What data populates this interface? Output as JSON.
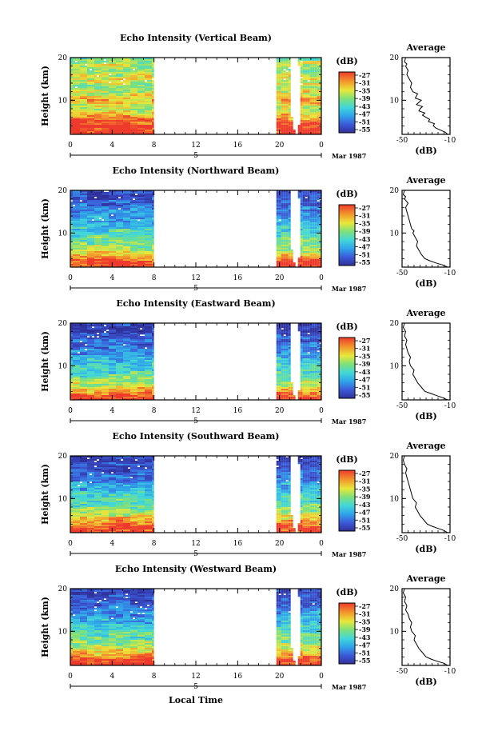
{
  "figure": {
    "month_label": "Mar 1987",
    "date_label": "5",
    "xlabel": "Local Time",
    "ylabel": "Height (km)",
    "cbar_title": "(dB)",
    "cbar_ticks": [
      "-27",
      "-31",
      "-35",
      "-39",
      "-43",
      "-47",
      "-51",
      "-55"
    ],
    "average_title": "Average",
    "average_xlabel": "(dB)"
  },
  "chart_data": [
    {
      "type": "heatmap",
      "title": "Echo Intensity (Vertical Beam)",
      "x_ticks": [
        "0",
        "4",
        "8",
        "12",
        "16",
        "20",
        "0"
      ],
      "y_ticks": [
        "20",
        "10"
      ],
      "xlim": [
        0,
        24
      ],
      "ylim": [
        2,
        20
      ],
      "data_time_ranges": [
        [
          0,
          8
        ],
        [
          19.7,
          24
        ]
      ],
      "gap_hours": [
        8,
        19.7
      ],
      "colorbar": {
        "label": "(dB)",
        "range": [
          -56,
          -25
        ]
      },
      "layers_db": [
        [
          2,
          -26
        ],
        [
          4,
          -27
        ],
        [
          5,
          -28
        ],
        [
          6.5,
          -33
        ],
        [
          8,
          -37
        ],
        [
          10,
          -32
        ],
        [
          11.5,
          -35
        ],
        [
          13,
          -38
        ],
        [
          15,
          -34
        ],
        [
          17,
          -39
        ],
        [
          18.5,
          -36
        ],
        [
          20,
          -40
        ]
      ],
      "average": {
        "x_ticks": [
          "-50",
          "-10"
        ],
        "y_ticks": [
          "20",
          "10"
        ],
        "xlim": [
          -50,
          -10
        ],
        "ylim": [
          2,
          20
        ],
        "x": [
          -12,
          -14,
          -18,
          -22,
          -24,
          -23,
          -28,
          -27,
          -30,
          -33,
          -31,
          -36,
          -35,
          -33,
          -38,
          -36,
          -34,
          -39,
          -38,
          -37,
          -41,
          -43,
          -42,
          -44,
          -46,
          -45,
          -47,
          -46,
          -48,
          -47
        ],
        "y": [
          2,
          2.5,
          3,
          3.5,
          4,
          4.5,
          5,
          5.5,
          6,
          6.5,
          7,
          7.5,
          8,
          8.5,
          9,
          9.5,
          10,
          10.5,
          11,
          11.5,
          12,
          13,
          14,
          15,
          16,
          17,
          18,
          18.5,
          19,
          20
        ]
      }
    },
    {
      "type": "heatmap",
      "title": "Echo Intensity (Northward Beam)",
      "x_ticks": [
        "0",
        "4",
        "8",
        "12",
        "16",
        "20",
        "0"
      ],
      "y_ticks": [
        "20",
        "10"
      ],
      "xlim": [
        0,
        24
      ],
      "ylim": [
        2,
        20
      ],
      "data_time_ranges": [
        [
          0,
          8
        ],
        [
          19.7,
          24
        ]
      ],
      "gap_hours": [
        8,
        19.7
      ],
      "colorbar": {
        "label": "(dB)",
        "range": [
          -56,
          -25
        ]
      },
      "layers_db": [
        [
          2,
          -26
        ],
        [
          3.5,
          -28
        ],
        [
          5,
          -34
        ],
        [
          6.5,
          -38
        ],
        [
          8,
          -40
        ],
        [
          10,
          -42
        ],
        [
          12,
          -45
        ],
        [
          14,
          -48
        ],
        [
          16,
          -50
        ],
        [
          18,
          -52
        ],
        [
          20,
          -53
        ]
      ],
      "average": {
        "x_ticks": [
          "-50",
          "-10"
        ],
        "y_ticks": [
          "20",
          "10"
        ],
        "xlim": [
          -50,
          -10
        ],
        "ylim": [
          2,
          20
        ],
        "x": [
          -12,
          -16,
          -22,
          -27,
          -31,
          -34,
          -36,
          -38,
          -37,
          -39,
          -41,
          -40,
          -42,
          -43,
          -44,
          -45,
          -46,
          -47,
          -45,
          -48,
          -47,
          -49,
          -48
        ],
        "y": [
          2,
          2.5,
          3,
          3.5,
          4,
          5,
          6,
          7,
          8,
          9,
          10,
          10.5,
          11,
          12,
          13,
          14,
          15,
          16,
          17,
          18,
          18.5,
          19,
          20
        ]
      }
    },
    {
      "type": "heatmap",
      "title": "Echo Intensity (Eastward Beam)",
      "x_ticks": [
        "0",
        "4",
        "8",
        "12",
        "16",
        "20",
        "0"
      ],
      "y_ticks": [
        "20",
        "10"
      ],
      "xlim": [
        0,
        24
      ],
      "ylim": [
        2,
        20
      ],
      "data_time_ranges": [
        [
          0,
          8
        ],
        [
          19.7,
          24
        ]
      ],
      "gap_hours": [
        8,
        19.7
      ],
      "colorbar": {
        "label": "(dB)",
        "range": [
          -56,
          -25
        ]
      },
      "layers_db": [
        [
          2,
          -26
        ],
        [
          3.5,
          -29
        ],
        [
          5,
          -35
        ],
        [
          6.5,
          -39
        ],
        [
          8,
          -42
        ],
        [
          10,
          -43
        ],
        [
          12,
          -46
        ],
        [
          14,
          -49
        ],
        [
          16,
          -51
        ],
        [
          18,
          -53
        ],
        [
          20,
          -54
        ]
      ],
      "average": {
        "x_ticks": [
          "-50",
          "-10"
        ],
        "y_ticks": [
          "20",
          "10"
        ],
        "xlim": [
          -50,
          -10
        ],
        "ylim": [
          2,
          20
        ],
        "x": [
          -12,
          -16,
          -21,
          -26,
          -31,
          -34,
          -37,
          -39,
          -41,
          -40,
          -43,
          -44,
          -43,
          -45,
          -46,
          -47,
          -46,
          -48,
          -47,
          -49,
          -48
        ],
        "y": [
          2,
          2.5,
          3,
          3.5,
          4,
          5,
          6,
          7,
          8,
          9,
          10,
          11,
          12,
          13,
          14,
          15,
          16,
          17,
          18,
          19,
          20
        ]
      }
    },
    {
      "type": "heatmap",
      "title": "Echo Intensity (Southward Beam)",
      "x_ticks": [
        "0",
        "4",
        "8",
        "12",
        "16",
        "20",
        "0"
      ],
      "y_ticks": [
        "20",
        "10"
      ],
      "xlim": [
        0,
        24
      ],
      "ylim": [
        2,
        20
      ],
      "data_time_ranges": [
        [
          0,
          8
        ],
        [
          19.7,
          24
        ]
      ],
      "gap_hours": [
        8,
        19.7
      ],
      "colorbar": {
        "label": "(dB)",
        "range": [
          -56,
          -25
        ]
      },
      "layers_db": [
        [
          2,
          -26
        ],
        [
          3.5,
          -28
        ],
        [
          5,
          -33
        ],
        [
          6.5,
          -37
        ],
        [
          8,
          -40
        ],
        [
          10,
          -42
        ],
        [
          12,
          -45
        ],
        [
          14,
          -48
        ],
        [
          16,
          -51
        ],
        [
          18,
          -53
        ],
        [
          20,
          -54
        ]
      ],
      "average": {
        "x_ticks": [
          "-50",
          "-10"
        ],
        "y_ticks": [
          "20",
          "10"
        ],
        "xlim": [
          -50,
          -10
        ],
        "ylim": [
          2,
          20
        ],
        "x": [
          -12,
          -15,
          -20,
          -25,
          -29,
          -32,
          -35,
          -37,
          -39,
          -38,
          -41,
          -42,
          -43,
          -44,
          -45,
          -46,
          -47,
          -46,
          -48,
          -49,
          -48
        ],
        "y": [
          2,
          2.5,
          3,
          3.5,
          4,
          5,
          6,
          7,
          8,
          9,
          10,
          11,
          12,
          13,
          14,
          15,
          16,
          17,
          18,
          19,
          20
        ]
      }
    },
    {
      "type": "heatmap",
      "title": "Echo Intensity (Westward Beam)",
      "x_ticks": [
        "0",
        "4",
        "8",
        "12",
        "16",
        "20",
        "0"
      ],
      "y_ticks": [
        "20",
        "10"
      ],
      "xlim": [
        0,
        24
      ],
      "ylim": [
        2,
        20
      ],
      "data_time_ranges": [
        [
          0,
          8
        ],
        [
          19.7,
          24
        ]
      ],
      "gap_hours": [
        8,
        19.7
      ],
      "colorbar": {
        "label": "(dB)",
        "range": [
          -56,
          -25
        ]
      },
      "layers_db": [
        [
          2,
          -26
        ],
        [
          3.5,
          -28
        ],
        [
          5,
          -33
        ],
        [
          6.5,
          -37
        ],
        [
          8,
          -40
        ],
        [
          10,
          -42
        ],
        [
          12,
          -45
        ],
        [
          14,
          -48
        ],
        [
          16,
          -51
        ],
        [
          18,
          -53
        ],
        [
          20,
          -54
        ]
      ],
      "average": {
        "x_ticks": [
          "-50",
          "-10"
        ],
        "y_ticks": [
          "20",
          "10"
        ],
        "xlim": [
          -50,
          -10
        ],
        "ylim": [
          2,
          20
        ],
        "x": [
          -12,
          -15,
          -21,
          -26,
          -30,
          -33,
          -36,
          -38,
          -40,
          -39,
          -42,
          -43,
          -42,
          -44,
          -45,
          -47,
          -46,
          -48,
          -47,
          -49,
          -48
        ],
        "y": [
          2,
          2.5,
          3,
          3.5,
          4,
          5,
          6,
          7,
          8,
          9,
          10,
          11,
          12,
          13,
          14,
          15,
          16,
          17,
          18,
          19,
          20
        ]
      }
    }
  ]
}
